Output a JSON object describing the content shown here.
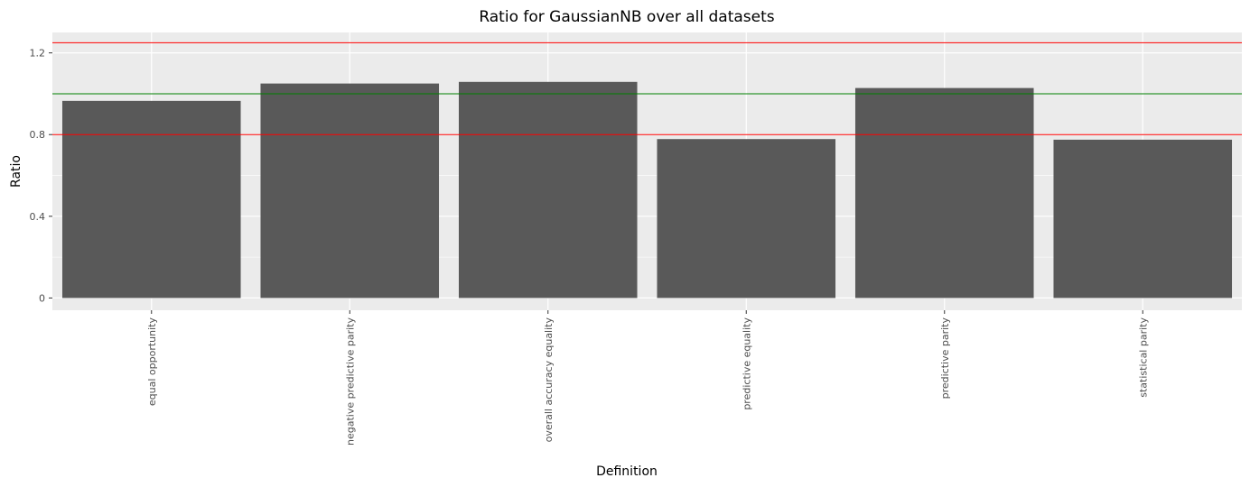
{
  "chart_data": {
    "type": "bar",
    "title": "Ratio for GaussianNB over all datasets",
    "xlabel": "Definition",
    "ylabel": "Ratio",
    "categories": [
      "equal opportunity",
      "negative predictive parity",
      "overall accuracy equality",
      "predictive equality",
      "predictive parity",
      "statistical parity"
    ],
    "values": [
      0.965,
      1.05,
      1.058,
      0.778,
      1.028,
      0.775
    ],
    "ylim": [
      -0.06,
      1.3
    ],
    "yticks": [
      0,
      0.4,
      0.8,
      1.2
    ],
    "ytick_labels": [
      "0",
      "0.4",
      "0.8",
      "1.2"
    ],
    "reference_lines": [
      {
        "name": "upper-threshold",
        "value": 1.25,
        "color": "#ff0000"
      },
      {
        "name": "parity",
        "value": 1.0,
        "color": "#008000"
      },
      {
        "name": "lower-threshold",
        "value": 0.8,
        "color": "#ff0000"
      }
    ],
    "bar_color": "#595959",
    "panel_color": "#ebebeb",
    "grid": true,
    "legend": "none"
  }
}
